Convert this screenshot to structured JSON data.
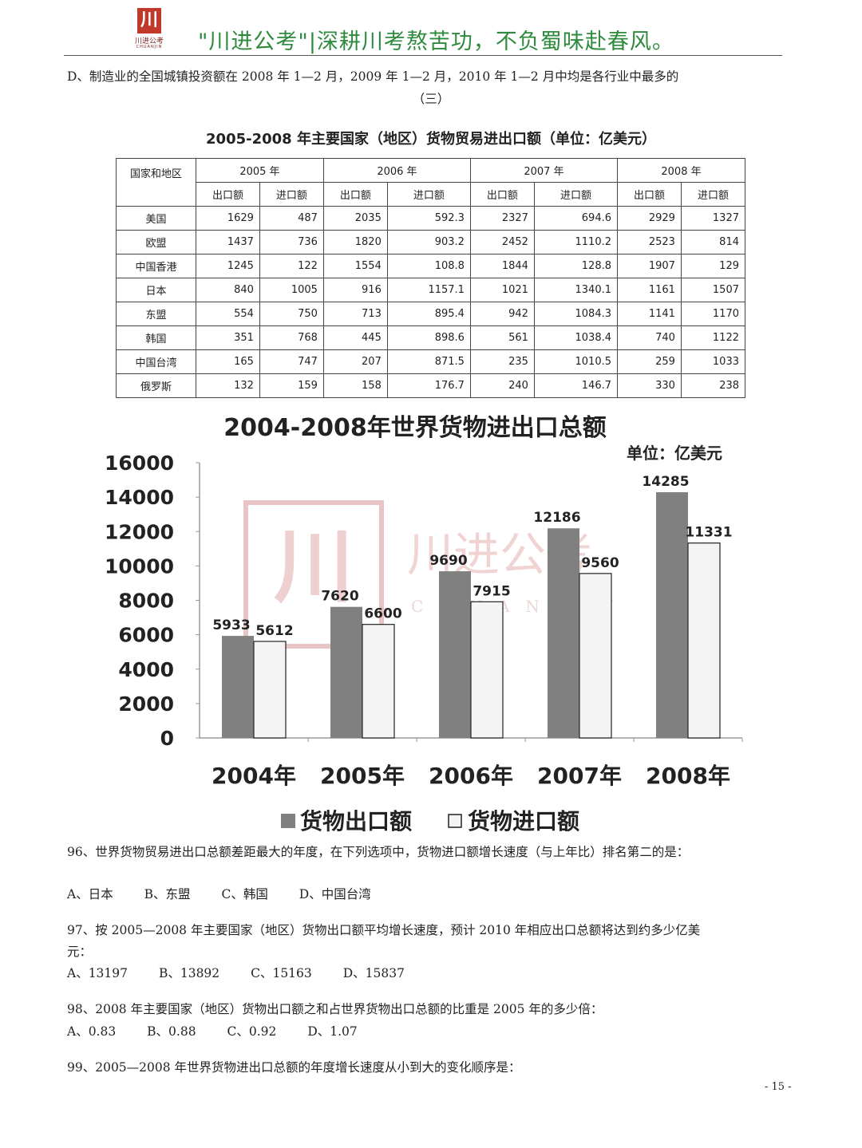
{
  "header": {
    "logo_char": "川",
    "logo_name": "川进公考",
    "logo_en": "CHUANJIN",
    "slogan": "\"川进公考\"|深耕川考熬苦功，不负蜀味赴春风。"
  },
  "option_d_line": "D、制造业的全国城镇投资额在 2008 年 1—2 月，2009 年 1—2 月，2010 年 1—2 月中均是各行业中最多的",
  "section": "（三）",
  "table": {
    "title": "2005-2008 年主要国家（地区）货物贸易进出口额（单位：亿美元）",
    "region_header": "国家和地区",
    "years": [
      "2005 年",
      "2006 年",
      "2007 年",
      "2008 年"
    ],
    "sub_headers": [
      "出口额",
      "进口额"
    ],
    "rows": [
      {
        "name": "美国",
        "values": [
          "1629",
          "487",
          "2035",
          "592.3",
          "2327",
          "694.6",
          "2929",
          "1327"
        ]
      },
      {
        "name": "欧盟",
        "values": [
          "1437",
          "736",
          "1820",
          "903.2",
          "2452",
          "1110.2",
          "2523",
          "814"
        ]
      },
      {
        "name": "中国香港",
        "values": [
          "1245",
          "122",
          "1554",
          "108.8",
          "1844",
          "128.8",
          "1907",
          "129"
        ]
      },
      {
        "name": "日本",
        "values": [
          "840",
          "1005",
          "916",
          "1157.1",
          "1021",
          "1340.1",
          "1161",
          "1507"
        ]
      },
      {
        "name": "东盟",
        "values": [
          "554",
          "750",
          "713",
          "895.4",
          "942",
          "1084.3",
          "1141",
          "1170"
        ]
      },
      {
        "name": "韩国",
        "values": [
          "351",
          "768",
          "445",
          "898.6",
          "561",
          "1038.4",
          "740",
          "1122"
        ]
      },
      {
        "name": "中国台湾",
        "values": [
          "165",
          "747",
          "207",
          "871.5",
          "235",
          "1010.5",
          "259",
          "1033"
        ]
      },
      {
        "name": "俄罗斯",
        "values": [
          "132",
          "159",
          "158",
          "176.7",
          "240",
          "146.7",
          "330",
          "238"
        ]
      }
    ]
  },
  "chart_data": {
    "type": "bar",
    "title": "2004-2008年世界货物进出口总额",
    "unit": "单位：亿美元",
    "categories": [
      "2004年",
      "2005年",
      "2006年",
      "2007年",
      "2008年"
    ],
    "series": [
      {
        "name": "货物出口额",
        "values": [
          5933,
          7620,
          9690,
          12186,
          14285
        ],
        "color": "#808080"
      },
      {
        "name": "货物进口额",
        "values": [
          5612,
          6600,
          7915,
          9560,
          11331
        ],
        "color": "#f4f4f4"
      }
    ],
    "ylim": [
      0,
      16000
    ],
    "yticks": [
      "0",
      "2000",
      "4000",
      "6000",
      "8000",
      "10000",
      "12000",
      "14000",
      "16000"
    ],
    "legend": "bottom",
    "watermark": {
      "text": "川进公考",
      "en": "CHUANJIN"
    }
  },
  "questions": [
    {
      "stem": "96、世界货物贸易进出口总额差距最大的年度，在下列选项中，货物进口额增长速度（与上年比）排名第二的是：",
      "options": [
        "A、日本",
        "B、东盟",
        "C、韩国",
        "D、中国台湾"
      ]
    },
    {
      "stem_1": "97、按 2005—2008 年主要国家（地区）货物出口额平均增长速度，预计 2010 年相应出口总额将达到约多少亿美",
      "stem_2": "元：",
      "options": [
        "A、13197",
        "B、13892",
        "C、15163",
        "D、15837"
      ]
    },
    {
      "stem": "98、2008 年主要国家（地区）货物出口额之和占世界货物出口总额的比重是 2005 年的多少倍：",
      "options": [
        "A、0.83",
        "B、0.88",
        "C、0.92",
        "D、1.07"
      ]
    },
    {
      "stem": "99、2005—2008 年世界货物进出口总额的年度增长速度从小到大的变化顺序是："
    }
  ],
  "page_number": "- 15 -"
}
